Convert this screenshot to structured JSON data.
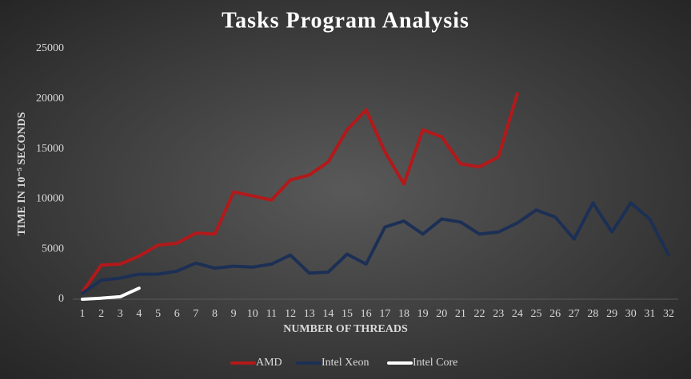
{
  "chart_data": {
    "type": "line",
    "title": "Tasks Program Analysis",
    "xlabel": "NUMBER OF THREADS",
    "ylabel": "TIME IN 10⁻⁵ SECONDS",
    "categories": [
      1,
      2,
      3,
      4,
      5,
      6,
      7,
      8,
      9,
      10,
      11,
      12,
      13,
      14,
      15,
      16,
      17,
      18,
      19,
      20,
      21,
      22,
      23,
      24,
      25,
      26,
      27,
      28,
      29,
      30,
      31,
      32
    ],
    "series": [
      {
        "name": "AMD",
        "color": "#b3191a",
        "values": [
          700,
          3400,
          3500,
          4300,
          5400,
          5600,
          6600,
          6500,
          10700,
          10300,
          9900,
          11900,
          12400,
          13700,
          16900,
          18900,
          14700,
          11500,
          16900,
          16200,
          13500,
          13200,
          14200,
          20500,
          null,
          null,
          null,
          null,
          null,
          null,
          null,
          null
        ]
      },
      {
        "name": "Intel Xeon",
        "color": "#1c2f55",
        "values": [
          600,
          1900,
          2100,
          2500,
          2500,
          2800,
          3600,
          3100,
          3300,
          3200,
          3500,
          4400,
          2600,
          2700,
          4500,
          3500,
          7200,
          7800,
          6500,
          8000,
          7700,
          6500,
          6700,
          7600,
          8900,
          8200,
          6000,
          9600,
          6700,
          9600,
          8000,
          4400
        ]
      },
      {
        "name": "Intel Core",
        "color": "#ffffff",
        "values": [
          0,
          100,
          250,
          1100,
          null,
          null,
          null,
          null,
          null,
          null,
          null,
          null,
          null,
          null,
          null,
          null,
          null,
          null,
          null,
          null,
          null,
          null,
          null,
          null,
          null,
          null,
          null,
          null,
          null,
          null,
          null,
          null
        ]
      }
    ],
    "ylim": [
      0,
      25000
    ],
    "yticks": [
      0,
      5000,
      10000,
      15000,
      20000,
      25000
    ],
    "grid": false,
    "legend": "bottom"
  }
}
